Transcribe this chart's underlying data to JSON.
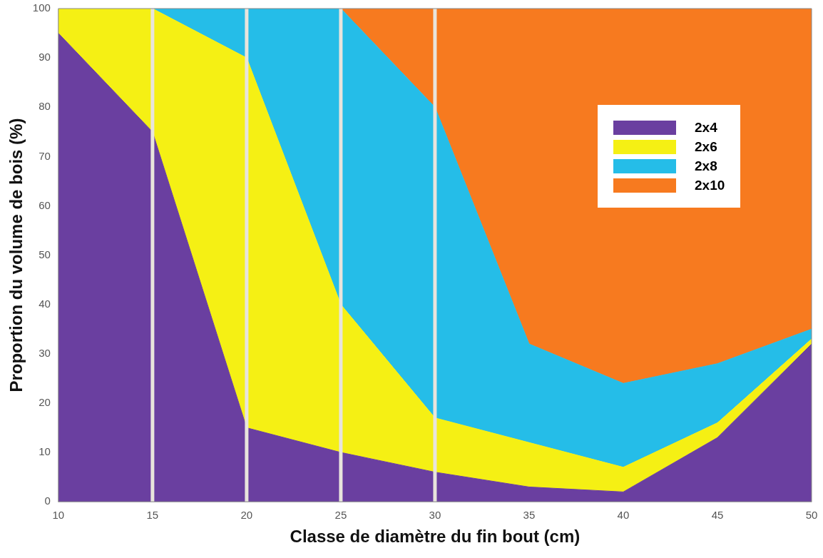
{
  "chart_data": {
    "type": "area",
    "stacked": true,
    "xlabel": "Classe de diamètre du fin bout (cm)",
    "ylabel": "Proportion du volume de bois (%)",
    "x": [
      10,
      15,
      20,
      25,
      30,
      35,
      40,
      45,
      50
    ],
    "series": [
      {
        "name": "2x4",
        "color": "#6a3fa0",
        "values": [
          95,
          75,
          15,
          10,
          6,
          3,
          2,
          13,
          32
        ]
      },
      {
        "name": "2x6",
        "color": "#f5f014",
        "values": [
          5,
          25,
          75,
          30,
          11,
          9,
          5,
          3,
          1
        ]
      },
      {
        "name": "2x8",
        "color": "#25bde8",
        "values": [
          0,
          0,
          10,
          60,
          63,
          20,
          17,
          12,
          2
        ]
      },
      {
        "name": "2x10",
        "color": "#f77a1f",
        "values": [
          0,
          0,
          0,
          0,
          20,
          68,
          76,
          72,
          65
        ]
      }
    ],
    "xlim": [
      10,
      50
    ],
    "xticks": [
      10,
      15,
      20,
      25,
      30,
      35,
      40,
      45,
      50
    ],
    "ylim": [
      0,
      100
    ],
    "yticks": [
      0,
      10,
      20,
      30,
      40,
      50,
      60,
      70,
      80,
      90,
      100
    ],
    "grid": false,
    "legend": "top right",
    "ref_lines": [
      {
        "axis": "x",
        "value": 15,
        "color": "#e8e4dc"
      },
      {
        "axis": "x",
        "value": 20,
        "color": "#e8e4dc"
      },
      {
        "axis": "x",
        "value": 25,
        "color": "#e8e4dc"
      },
      {
        "axis": "x",
        "value": 30,
        "color": "#e8e4dc"
      }
    ]
  }
}
